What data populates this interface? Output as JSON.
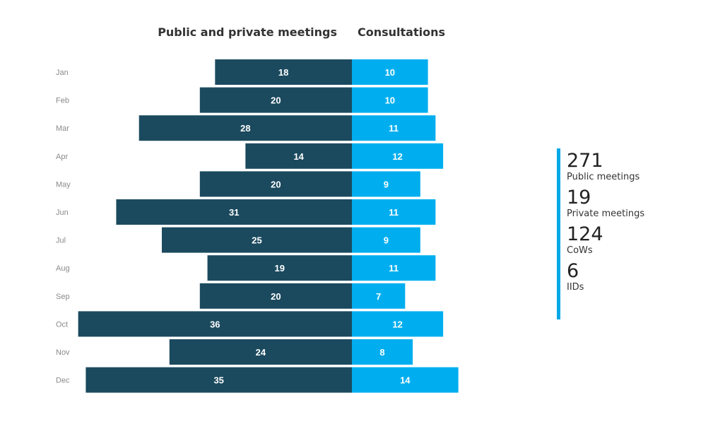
{
  "chart_data": {
    "type": "bar",
    "orientation": "horizontal-diverging",
    "categories": [
      "Jan",
      "Feb",
      "Mar",
      "Apr",
      "May",
      "Jun",
      "Jul",
      "Aug",
      "Sep",
      "Oct",
      "Nov",
      "Dec"
    ],
    "series": [
      {
        "name": "Public and private meetings",
        "color": "#1b4a5e",
        "values": [
          18,
          20,
          28,
          14,
          20,
          31,
          25,
          19,
          20,
          36,
          24,
          35
        ]
      },
      {
        "name": "Consultations",
        "color": "#00aeef",
        "values": [
          10,
          10,
          11,
          12,
          9,
          11,
          9,
          11,
          7,
          12,
          8,
          14
        ]
      }
    ],
    "title": "",
    "xlabel": "",
    "ylabel": "",
    "grid": false,
    "legend": "none"
  },
  "summary": {
    "accent_color": "#00a8e8",
    "stats": [
      {
        "value": "271",
        "label": "Public meetings"
      },
      {
        "value": "19",
        "label": "Private meetings"
      },
      {
        "value": "124",
        "label": "CoWs"
      },
      {
        "value": "6",
        "label": "IIDs"
      }
    ]
  }
}
